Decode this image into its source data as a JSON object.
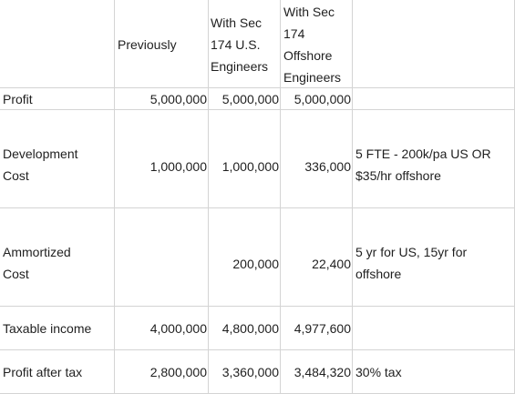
{
  "headers": {
    "previously": "Previously",
    "us_line1": "With Sec",
    "us_line2": "174 U.S.",
    "us_line3": "Engineers",
    "off_line1": "With Sec",
    "off_line2": "174",
    "off_line3": "Offshore",
    "off_line4": "Engineers"
  },
  "rows": {
    "profit": {
      "label": "Profit",
      "previously": "5,000,000",
      "us": "5,000,000",
      "offshore": "5,000,000"
    },
    "development": {
      "label_line1": "Development",
      "label_line2": "Cost",
      "previously": "1,000,000",
      "us": "1,000,000",
      "offshore": "336,000",
      "note_line1": "5 FTE - 200k/pa US OR",
      "note_line2": "$35/hr offshore"
    },
    "amortized": {
      "label_line1": "Ammortized",
      "label_line2": "Cost",
      "us": "200,000",
      "offshore": "22,400",
      "note_line1": "5 yr for US, 15yr for",
      "note_line2": "offshore"
    },
    "taxable": {
      "label": "Taxable income",
      "previously": "4,000,000",
      "us": "4,800,000",
      "offshore": "4,977,600"
    },
    "after_tax": {
      "label": "Profit after tax",
      "previously": "2,800,000",
      "us": "3,360,000",
      "offshore": "3,484,320",
      "note": "30% tax"
    }
  }
}
